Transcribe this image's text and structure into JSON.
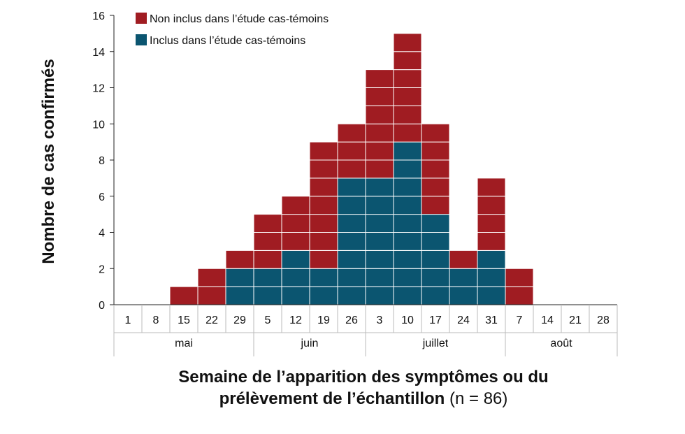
{
  "chart_data": {
    "type": "bar",
    "stacked": true,
    "ylabel": "Nombre de cas confirmés",
    "xtitle_line1": "Semaine de l’apparition des symptômes ou du",
    "xtitle_line2_bold": "prélèvement de l’échantillon",
    "xtitle_line2_note": "(n = 86)",
    "ylim": [
      0,
      16
    ],
    "yticks": [
      0,
      2,
      4,
      6,
      8,
      10,
      12,
      14,
      16
    ],
    "categories": [
      "1",
      "8",
      "15",
      "22",
      "29",
      "5",
      "12",
      "19",
      "26",
      "3",
      "10",
      "17",
      "24",
      "31",
      "7",
      "14",
      "21",
      "28"
    ],
    "months": [
      {
        "label": "mai",
        "start": 0,
        "end": 5
      },
      {
        "label": "juin",
        "start": 5,
        "end": 9
      },
      {
        "label": "juillet",
        "start": 9,
        "end": 14
      },
      {
        "label": "août",
        "start": 14,
        "end": 18
      }
    ],
    "series": [
      {
        "name": "Inclus dans l’étude cas-témoins",
        "color": "#0b5570",
        "values": [
          0,
          0,
          0,
          0,
          2,
          2,
          3,
          2,
          7,
          7,
          9,
          5,
          2,
          3,
          0,
          0,
          0,
          0
        ]
      },
      {
        "name": "Non inclus dans l’étude cas-témoins",
        "color": "#a01c22",
        "values": [
          0,
          0,
          1,
          2,
          1,
          3,
          3,
          7,
          3,
          6,
          6,
          5,
          1,
          4,
          2,
          0,
          0,
          0
        ]
      }
    ],
    "legend": [
      {
        "name": "Non inclus dans l’étude cas-témoins",
        "color": "#a01c22"
      },
      {
        "name": "Inclus dans l’étude cas-témoins",
        "color": "#0b5570"
      }
    ],
    "legend_position": "top-left",
    "grid": false
  }
}
